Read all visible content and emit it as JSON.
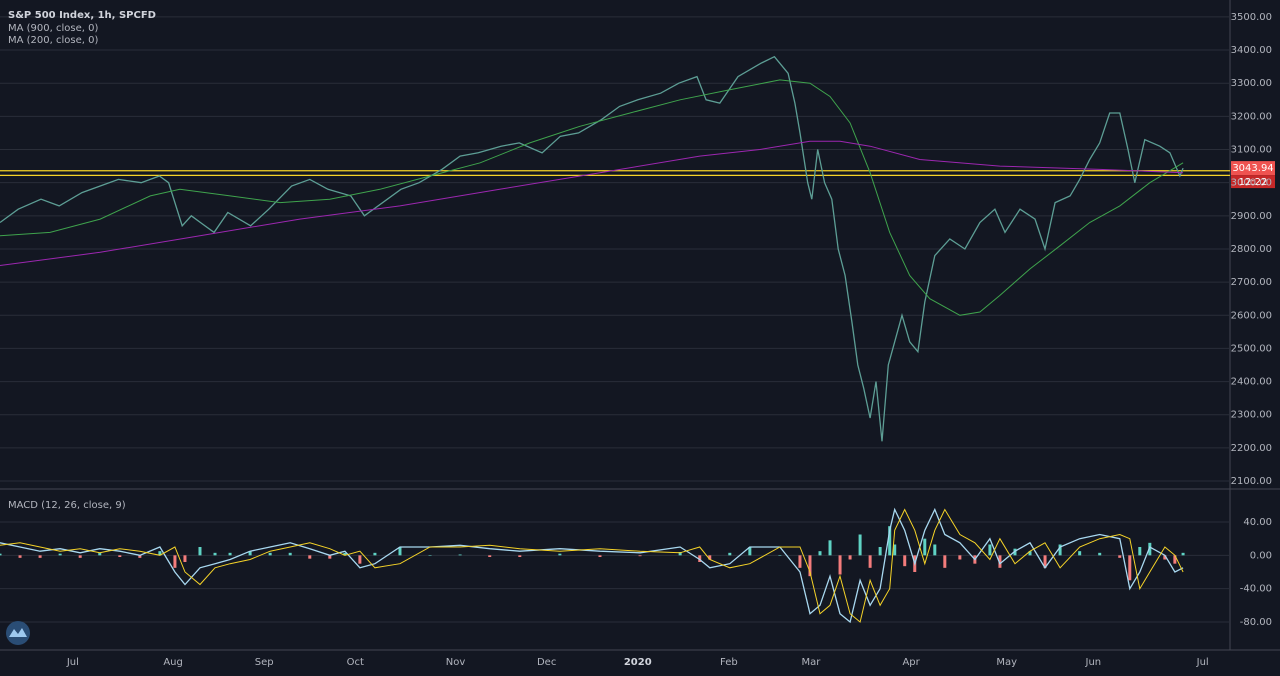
{
  "chart_data": [
    {
      "type": "line",
      "title": "S&P 500 Index, 1h, SPCFD",
      "xlim": [
        0,
        270
      ],
      "ylim": [
        2079,
        3551
      ],
      "yticks": [
        {
          "value": 2100,
          "label": "2100.00"
        },
        {
          "value": 2200,
          "label": "2200.00"
        },
        {
          "value": 2300,
          "label": "2300.00"
        },
        {
          "value": 2400,
          "label": "2400.00"
        },
        {
          "value": 2500,
          "label": "2500.00"
        },
        {
          "value": 2600,
          "label": "2600.00"
        },
        {
          "value": 2700,
          "label": "2700.00"
        },
        {
          "value": 2800,
          "label": "2800.00"
        },
        {
          "value": 2900,
          "label": "2900.00"
        },
        {
          "value": 3000,
          "label": "3000.00"
        },
        {
          "value": 3100,
          "label": "3100.00"
        },
        {
          "value": 3200,
          "label": "3200.00"
        },
        {
          "value": 3300,
          "label": "3300.00"
        },
        {
          "value": 3400,
          "label": "3400.00"
        },
        {
          "value": 3500,
          "label": "3500.00"
        }
      ],
      "grid": true,
      "series": [
        {
          "color": "#5d9e95",
          "x": [
            0,
            4,
            9,
            13,
            18,
            22,
            26,
            31,
            35,
            37,
            40,
            42,
            44,
            47,
            50,
            55,
            59,
            64,
            68,
            72,
            77,
            80,
            83,
            88,
            92,
            97,
            101,
            105,
            110,
            114,
            119,
            123,
            127,
            132,
            136,
            140,
            145,
            149,
            153,
            155,
            158,
            162,
            167,
            170,
            173,
            174.5,
            175.6,
            177.3,
            178.2,
            179.5,
            181,
            182.6,
            184,
            185.5,
            187,
            188.3,
            189.6,
            191,
            192.3,
            193.6,
            195,
            196.4,
            198,
            199.7,
            201.5,
            203,
            205.2,
            208.5,
            211.8,
            215.1,
            218.4,
            220.6,
            223.9,
            227.2,
            229.4,
            231.6,
            234.9,
            237,
            239.2,
            241.4,
            243.6,
            245.8,
            247.6,
            249.1,
            251.3,
            254.6,
            256.8,
            259,
            259.7
          ],
          "values": [
            2880,
            2920,
            2950,
            2930,
            2970,
            2990,
            3010,
            3000,
            3020,
            3000,
            2870,
            2900,
            2880,
            2850,
            2910,
            2870,
            2920,
            2990,
            3010,
            2980,
            2960,
            2900,
            2930,
            2980,
            3000,
            3040,
            3080,
            3090,
            3110,
            3120,
            3090,
            3140,
            3150,
            3190,
            3230,
            3250,
            3270,
            3300,
            3320,
            3250,
            3240,
            3320,
            3360,
            3380,
            3330,
            3240,
            3150,
            3000,
            2950,
            3100,
            3000,
            2950,
            2800,
            2720,
            2580,
            2450,
            2380,
            2290,
            2400,
            2220,
            2450,
            2520,
            2600,
            2520,
            2490,
            2640,
            2780,
            2830,
            2800,
            2880,
            2920,
            2850,
            2920,
            2890,
            2800,
            2940,
            2960,
            3010,
            3070,
            3120,
            3210,
            3210,
            3100,
            3000,
            3130,
            3110,
            3090,
            3020,
            3043.94
          ]
        },
        {
          "name": "MA (900, close, 0)",
          "color": "#3fa34d",
          "x": [
            0,
            11,
            22,
            33,
            39.5,
            50.5,
            61.5,
            72.4,
            83.4,
            94.4,
            105.4,
            116.3,
            127.3,
            138.3,
            149.3,
            160.2,
            171.2,
            177.8,
            182.2,
            186.6,
            191,
            195.3,
            199.7,
            204.1,
            210.7,
            215.1,
            219.5,
            226.1,
            232.7,
            239.2,
            245.8,
            252.4,
            259.7
          ],
          "values": [
            2840,
            2850,
            2890,
            2960,
            2980,
            2960,
            2940,
            2950,
            2980,
            3020,
            3060,
            3120,
            3170,
            3210,
            3250,
            3280,
            3310,
            3300,
            3260,
            3180,
            3030,
            2850,
            2720,
            2650,
            2600,
            2610,
            2660,
            2740,
            2810,
            2880,
            2930,
            3000,
            3060
          ]
        },
        {
          "name": "MA (200, close, 0)",
          "color": "#9c27b0",
          "x": [
            0,
            22,
            43.9,
            65.8,
            87.8,
            109.7,
            131.7,
            153.6,
            166.8,
            177.8,
            184.4,
            191,
            201.9,
            219.5,
            241.4,
            259.7
          ],
          "values": [
            2750,
            2790,
            2840,
            2890,
            2930,
            2980,
            3030,
            3080,
            3100,
            3125,
            3125,
            3110,
            3070,
            3050,
            3040,
            3030
          ]
        }
      ],
      "hlines": [
        {
          "value": 3036,
          "color": "#f5d328"
        },
        {
          "value": 3022,
          "color": "#f5d328"
        }
      ],
      "last_label": "3043.94",
      "countdown": "12:22"
    },
    {
      "type": "line",
      "title": "MACD (12, 26, close, 9)",
      "xlim": [
        0,
        270
      ],
      "ylim": [
        -113.6,
        78.4
      ],
      "yticks": [
        {
          "value": 40,
          "label": "40.00"
        },
        {
          "value": 0,
          "label": "0.00"
        },
        {
          "value": -40,
          "label": "-40.00"
        },
        {
          "value": -80,
          "label": "-80.00"
        }
      ],
      "xticks": [
        {
          "value": 16,
          "label": "Jul"
        },
        {
          "value": 38,
          "label": "Aug"
        },
        {
          "value": 58,
          "label": "Sep"
        },
        {
          "value": 78,
          "label": "Oct"
        },
        {
          "value": 100,
          "label": "Nov"
        },
        {
          "value": 120,
          "label": "Dec"
        },
        {
          "value": 140,
          "label": "2020"
        },
        {
          "value": 160,
          "label": "Feb"
        },
        {
          "value": 178,
          "label": "Mar"
        },
        {
          "value": 200,
          "label": "Apr"
        },
        {
          "value": 221,
          "label": "May"
        },
        {
          "value": 240,
          "label": "Jun"
        },
        {
          "value": 264,
          "label": "Jul"
        }
      ],
      "grid": true,
      "series": [
        {
          "color": "#a8d8f0",
          "x": [
            0,
            4.4,
            8.8,
            13.2,
            17.6,
            21.9,
            26.3,
            30.7,
            35.1,
            38.4,
            40.6,
            43.9,
            47.2,
            50.5,
            54.9,
            59.3,
            63.7,
            68,
            72.4,
            75.7,
            79,
            82.3,
            87.8,
            94.4,
            101,
            107.5,
            114.1,
            122.9,
            131.7,
            140.5,
            149.3,
            153.6,
            155.8,
            160.2,
            164.6,
            171.2,
            175.6,
            177.8,
            180,
            182.2,
            184.4,
            186.6,
            188.8,
            191,
            193.2,
            195.3,
            196.4,
            198.6,
            200.8,
            203,
            205.2,
            207.4,
            210.7,
            214,
            217.3,
            219.5,
            222.8,
            226.1,
            229.4,
            232.7,
            237,
            241.4,
            245.8,
            248,
            250.2,
            252.4,
            255.7,
            257.9,
            259.7
          ],
          "values": [
            15,
            10,
            5,
            8,
            3,
            8,
            5,
            0,
            10,
            -20,
            -35,
            -15,
            -10,
            -5,
            5,
            10,
            15,
            8,
            0,
            5,
            -15,
            -10,
            10,
            10,
            12,
            8,
            5,
            8,
            5,
            3,
            10,
            -5,
            -15,
            -10,
            10,
            10,
            -20,
            -70,
            -60,
            -25,
            -70,
            -80,
            -30,
            -60,
            -40,
            30,
            55,
            30,
            -10,
            30,
            55,
            25,
            15,
            -5,
            20,
            -10,
            5,
            15,
            -15,
            10,
            20,
            25,
            20,
            -40,
            -20,
            10,
            0,
            -20,
            -15
          ]
        },
        {
          "color": "#f5d328",
          "x": [
            0,
            4.4,
            8.8,
            13.2,
            17.6,
            21.9,
            26.3,
            30.7,
            35.1,
            38.4,
            40.6,
            43.9,
            47.2,
            50.5,
            54.9,
            59.3,
            63.7,
            68,
            72.4,
            75.7,
            79,
            82.3,
            87.8,
            94.4,
            101,
            107.5,
            114.1,
            122.9,
            131.7,
            140.5,
            149.3,
            153.6,
            155.8,
            160.2,
            164.6,
            171.2,
            175.6,
            177.8,
            180,
            182.2,
            184.4,
            186.6,
            188.8,
            191,
            193.2,
            195.3,
            196.4,
            198.6,
            200.8,
            203,
            205.2,
            207.4,
            210.7,
            214,
            217.3,
            219.5,
            222.8,
            226.1,
            229.4,
            232.7,
            237,
            241.4,
            245.8,
            248,
            250.2,
            252.4,
            255.7,
            257.9,
            259.7
          ],
          "values": [
            12,
            15,
            10,
            5,
            8,
            3,
            8,
            5,
            0,
            10,
            -20,
            -35,
            -15,
            -10,
            -5,
            5,
            10,
            15,
            8,
            0,
            5,
            -15,
            -10,
            10,
            10,
            12,
            8,
            5,
            8,
            5,
            3,
            10,
            -5,
            -15,
            -10,
            10,
            10,
            -20,
            -70,
            -60,
            -25,
            -70,
            -80,
            -30,
            -60,
            -40,
            30,
            55,
            30,
            -10,
            30,
            55,
            25,
            15,
            -5,
            20,
            -10,
            5,
            15,
            -15,
            10,
            20,
            25,
            20,
            -40,
            -20,
            10,
            0,
            -20
          ]
        }
      ],
      "histogram": {
        "up_color": "#5fd3c4",
        "down_color": "#f47c7c",
        "x": [
          0,
          4.4,
          8.8,
          13.2,
          17.6,
          21.9,
          26.3,
          30.7,
          35.1,
          38.4,
          40.6,
          43.9,
          47.2,
          50.5,
          54.9,
          59.3,
          63.7,
          68,
          72.4,
          75.7,
          79,
          82.3,
          87.8,
          94.4,
          101,
          107.5,
          114.1,
          122.9,
          131.7,
          140.5,
          149.3,
          153.6,
          155.8,
          160.2,
          164.6,
          171.2,
          175.6,
          177.8,
          180,
          182.2,
          184.4,
          186.6,
          188.8,
          191,
          193.2,
          195.3,
          196.4,
          198.6,
          200.8,
          203,
          205.2,
          207.4,
          210.7,
          214,
          217.3,
          219.5,
          222.8,
          226.1,
          229.4,
          232.7,
          237,
          241.4,
          245.8,
          248,
          250.2,
          252.4,
          255.7,
          257.9,
          259.7
        ],
        "values": [
          2,
          -3,
          -3,
          2,
          -3,
          3,
          -2,
          -3,
          5,
          -15,
          -8,
          10,
          3,
          3,
          5,
          3,
          3,
          -4,
          -4,
          3,
          -10,
          3,
          10,
          0,
          1,
          -2,
          -2,
          2,
          -2,
          -1,
          4,
          -8,
          -5,
          3,
          10,
          0,
          -15,
          -25,
          5,
          18,
          -23,
          -5,
          25,
          -15,
          10,
          35,
          13,
          -13,
          -20,
          20,
          13,
          -15,
          -5,
          -10,
          13,
          -15,
          8,
          5,
          -15,
          13,
          5,
          3,
          -3,
          -30,
          10,
          15,
          -5,
          -10,
          3
        ]
      }
    }
  ]
}
